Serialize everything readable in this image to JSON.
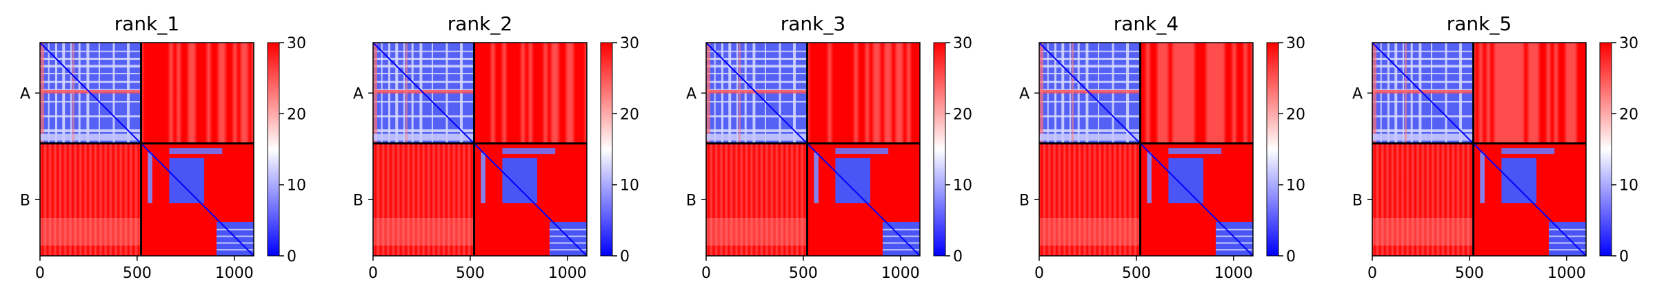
{
  "chart_data": [
    {
      "type": "heatmap",
      "title": "rank_1",
      "xlabel": "",
      "ylabel": "",
      "x_ticks": [
        0,
        500,
        1000
      ],
      "xlim": [
        0,
        1100
      ],
      "chain_labels": [
        "A",
        "B"
      ],
      "chain_lengths": [
        520,
        580
      ],
      "colorbar": {
        "min": 0,
        "max": 30,
        "ticks": [
          0,
          10,
          20,
          30
        ],
        "colormap": [
          "#0000ff",
          "#ffffff",
          "#ff0000"
        ]
      },
      "colors": {
        "low": "#0000ff",
        "mid": "#ffffff",
        "high": "#ff0000",
        "boundary": "#000000"
      }
    },
    {
      "type": "heatmap",
      "title": "rank_2",
      "xlabel": "",
      "ylabel": "",
      "x_ticks": [
        0,
        500,
        1000
      ],
      "xlim": [
        0,
        1100
      ],
      "chain_labels": [
        "A",
        "B"
      ],
      "chain_lengths": [
        520,
        580
      ],
      "colorbar": {
        "min": 0,
        "max": 30,
        "ticks": [
          0,
          10,
          20,
          30
        ],
        "colormap": [
          "#0000ff",
          "#ffffff",
          "#ff0000"
        ]
      },
      "colors": {
        "low": "#0000ff",
        "mid": "#ffffff",
        "high": "#ff0000",
        "boundary": "#000000"
      }
    },
    {
      "type": "heatmap",
      "title": "rank_3",
      "xlabel": "",
      "ylabel": "",
      "x_ticks": [
        0,
        500,
        1000
      ],
      "xlim": [
        0,
        1100
      ],
      "chain_labels": [
        "A",
        "B"
      ],
      "chain_lengths": [
        520,
        580
      ],
      "colorbar": {
        "min": 0,
        "max": 30,
        "ticks": [
          0,
          10,
          20,
          30
        ],
        "colormap": [
          "#0000ff",
          "#ffffff",
          "#ff0000"
        ]
      },
      "colors": {
        "low": "#0000ff",
        "mid": "#ffffff",
        "high": "#ff0000",
        "boundary": "#000000"
      }
    },
    {
      "type": "heatmap",
      "title": "rank_4",
      "xlabel": "",
      "ylabel": "",
      "x_ticks": [
        0,
        500,
        1000
      ],
      "xlim": [
        0,
        1100
      ],
      "chain_labels": [
        "A",
        "B"
      ],
      "chain_lengths": [
        520,
        580
      ],
      "colorbar": {
        "min": 0,
        "max": 30,
        "ticks": [
          0,
          10,
          20,
          30
        ],
        "colormap": [
          "#0000ff",
          "#ffffff",
          "#ff0000"
        ]
      },
      "colors": {
        "low": "#0000ff",
        "mid": "#ffffff",
        "high": "#ff0000",
        "boundary": "#000000"
      }
    },
    {
      "type": "heatmap",
      "title": "rank_5",
      "xlabel": "",
      "ylabel": "",
      "x_ticks": [
        0,
        500,
        1000
      ],
      "xlim": [
        0,
        1100
      ],
      "chain_labels": [
        "A",
        "B"
      ],
      "chain_lengths": [
        520,
        580
      ],
      "colorbar": {
        "min": 0,
        "max": 30,
        "ticks": [
          0,
          10,
          20,
          30
        ],
        "colormap": [
          "#0000ff",
          "#ffffff",
          "#ff0000"
        ]
      },
      "colors": {
        "low": "#0000ff",
        "mid": "#ffffff",
        "high": "#ff0000",
        "boundary": "#000000"
      }
    }
  ]
}
